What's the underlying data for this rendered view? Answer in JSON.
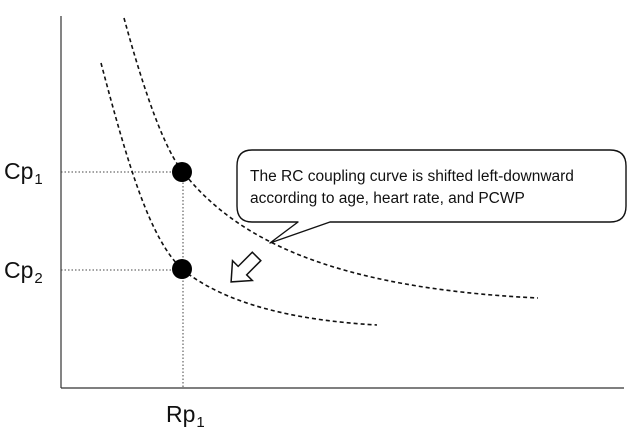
{
  "labels": {
    "cp1": {
      "main": "Cp",
      "sub": "1"
    },
    "cp2": {
      "main": "Cp",
      "sub": "2"
    },
    "rp1": {
      "main": "Rp",
      "sub": "1"
    }
  },
  "callout": {
    "line1": "The RC coupling curve is shifted left-downward",
    "line2": "according to age, heart rate, and PCWP"
  },
  "colors": {
    "ink": "#111111",
    "axis": "#333333",
    "background": "#ffffff"
  },
  "icons": {
    "shift_arrow": "hollow-arrow-down-left"
  }
}
